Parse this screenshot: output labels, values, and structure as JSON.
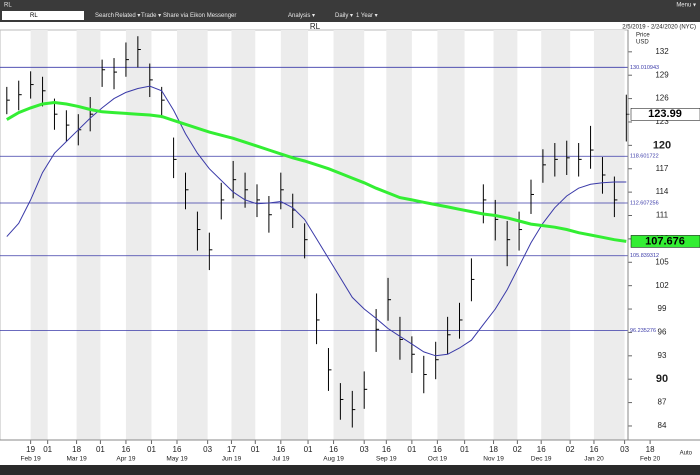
{
  "toolbar": {
    "window_title": "RL",
    "menu": "Menu ▾",
    "symbol": "RL",
    "items": [
      "Search",
      "Related ▾",
      "Trade ▾",
      "Share via Eikon Messenger",
      "Analysis ▾",
      "Daily ▾",
      "1 Year ▾"
    ]
  },
  "chart_data": {
    "type": "ohlc",
    "title": "RL",
    "subtitle": "2/5/2019 - 2/24/2020 (NYC)",
    "y_label": "Price",
    "y_unit": "USD",
    "scale_mode": "Auto",
    "x": [
      "2019-02-05",
      "2019-02-12",
      "2019-02-19",
      "2019-02-26",
      "2019-03-05",
      "2019-03-12",
      "2019-03-19",
      "2019-03-26",
      "2019-04-02",
      "2019-04-09",
      "2019-04-16",
      "2019-04-23",
      "2019-04-30",
      "2019-05-07",
      "2019-05-14",
      "2019-05-21",
      "2019-05-28",
      "2019-06-04",
      "2019-06-11",
      "2019-06-18",
      "2019-06-25",
      "2019-07-02",
      "2019-07-09",
      "2019-07-16",
      "2019-07-23",
      "2019-07-30",
      "2019-08-06",
      "2019-08-13",
      "2019-08-20",
      "2019-08-27",
      "2019-09-03",
      "2019-09-10",
      "2019-09-17",
      "2019-09-24",
      "2019-10-01",
      "2019-10-08",
      "2019-10-15",
      "2019-10-22",
      "2019-10-29",
      "2019-11-05",
      "2019-11-12",
      "2019-11-19",
      "2019-11-26",
      "2019-12-03",
      "2019-12-10",
      "2019-12-17",
      "2019-12-24",
      "2019-12-31",
      "2020-01-07",
      "2020-01-14",
      "2020-01-21",
      "2020-01-28",
      "2020-02-04"
    ],
    "color": "#000000",
    "high": [
      127.5,
      128.3,
      129.5,
      128.8,
      126,
      124.5,
      124,
      126.2,
      131,
      131.2,
      133.2,
      134,
      130.5,
      127.5,
      121,
      116.5,
      111.5,
      108.8,
      115.2,
      118,
      116.5,
      115,
      113.5,
      116.5,
      113.8,
      110,
      101,
      94,
      89.5,
      88.5,
      91,
      99,
      103,
      98,
      95.5,
      93,
      94.8,
      98,
      99.8,
      105.5,
      115,
      113,
      110.3,
      111.5,
      115.6,
      119.5,
      120.3,
      120.6,
      120.3,
      122.5,
      118.5,
      116,
      126.5
    ],
    "low": [
      124,
      124.5,
      126,
      125,
      122,
      120.5,
      120,
      121.8,
      127.5,
      127.2,
      128.8,
      130,
      126.2,
      123.5,
      115.8,
      111.8,
      106.5,
      104,
      110.5,
      113.2,
      112,
      110.8,
      108.8,
      111.8,
      109.4,
      105.5,
      94.5,
      88.5,
      84.8,
      83.8,
      86.2,
      93.5,
      97.5,
      92.5,
      90.8,
      88.2,
      90,
      93.2,
      95.2,
      100,
      110,
      107.8,
      104.5,
      106.5,
      111.2,
      115.2,
      116,
      116.2,
      116,
      117,
      113.8,
      110.8,
      120.5
    ],
    "close": [
      125.8,
      126.5,
      127.8,
      127,
      124,
      122.6,
      122,
      124,
      129.7,
      129.4,
      131,
      132.3,
      128.4,
      125.8,
      118.2,
      114.3,
      109.2,
      106.6,
      113,
      115.6,
      114.3,
      113,
      111.1,
      114.3,
      111.7,
      107.9,
      97.6,
      91.2,
      87.4,
      86.1,
      88.7,
      96.4,
      100.2,
      95.1,
      93.2,
      90.6,
      92.5,
      95.7,
      97.6,
      102.8,
      113,
      110.5,
      107.9,
      109.2,
      113.7,
      117.5,
      118.2,
      118.4,
      118.2,
      119.4,
      116.2,
      113,
      123.99
    ],
    "ma_lines": [
      {
        "color": "#3a3aa8",
        "width": 1,
        "values": [
          108.3,
          110,
          113,
          116.5,
          119,
          120.5,
          122,
          123.5,
          124.8,
          126,
          126.8,
          127.3,
          127.6,
          127,
          124.5,
          121.5,
          119,
          117,
          115.5,
          114,
          113,
          112.5,
          112.6,
          112.8,
          112,
          110.5,
          108,
          105.5,
          103,
          100.5,
          99,
          97.8,
          96.5,
          95.5,
          94.5,
          93.5,
          93,
          93.2,
          94,
          95,
          97,
          99,
          101.5,
          104.5,
          107.5,
          110,
          112,
          113.5,
          114.5,
          115,
          115.2,
          115.3,
          115.3
        ]
      },
      {
        "color": "#33ee33",
        "width": 3,
        "values": [
          123.3,
          124.2,
          124.8,
          125.3,
          125.5,
          125.3,
          125,
          124.6,
          124.3,
          124.2,
          124.1,
          124,
          123.9,
          123.7,
          123.2,
          122.7,
          122.2,
          121.7,
          121.3,
          120.9,
          120.4,
          119.9,
          119.4,
          118.9,
          118.4,
          118,
          117.5,
          117,
          116.4,
          115.8,
          115.2,
          114.5,
          113.9,
          113.3,
          113,
          112.7,
          112.4,
          112.1,
          111.8,
          111.5,
          111.2,
          111,
          110.7,
          110.3,
          109.9,
          109.7,
          109.5,
          109.2,
          108.8,
          108.5,
          108.2,
          107.9,
          107.676
        ]
      }
    ],
    "levels": [
      130.010943,
      118.601722,
      112.607256,
      105.839312,
      96.235276
    ],
    "level_color": "#3a3aa8",
    "xlim": [
      "2019-02-01",
      "2020-02-05"
    ],
    "ylim": [
      82.2,
      134.8
    ],
    "yticks": [
      84,
      87,
      90,
      93,
      96,
      99,
      102,
      105,
      108,
      111,
      114,
      117,
      120,
      123,
      126,
      129,
      132
    ],
    "xticks": [
      {
        "value": "2019-02-19",
        "label": "19"
      },
      {
        "value": "2019-03-01",
        "label": "01"
      },
      {
        "value": "2019-03-18",
        "label": "18"
      },
      {
        "value": "2019-04-01",
        "label": "01"
      },
      {
        "value": "2019-04-16",
        "label": "16"
      },
      {
        "value": "2019-05-01",
        "label": "01"
      },
      {
        "value": "2019-05-16",
        "label": "16"
      },
      {
        "value": "2019-06-03",
        "label": "03"
      },
      {
        "value": "2019-06-17",
        "label": "17"
      },
      {
        "value": "2019-07-01",
        "label": "01"
      },
      {
        "value": "2019-07-16",
        "label": "16"
      },
      {
        "value": "2019-08-01",
        "label": "01"
      },
      {
        "value": "2019-08-16",
        "label": "16"
      },
      {
        "value": "2019-09-03",
        "label": "03"
      },
      {
        "value": "2019-09-16",
        "label": "16"
      },
      {
        "value": "2019-10-01",
        "label": "01"
      },
      {
        "value": "2019-10-16",
        "label": "16"
      },
      {
        "value": "2019-11-01",
        "label": "01"
      },
      {
        "value": "2019-11-18",
        "label": "18"
      },
      {
        "value": "2019-12-02",
        "label": "02"
      },
      {
        "value": "2019-12-16",
        "label": "16"
      },
      {
        "value": "2020-01-02",
        "label": "02"
      },
      {
        "value": "2020-01-16",
        "label": "16"
      },
      {
        "value": "2020-02-03",
        "label": "03"
      },
      {
        "value": "2020-02-18",
        "label": "18"
      }
    ],
    "month_labels": [
      {
        "value": "2019-02-19",
        "label": "Feb 19"
      },
      {
        "value": "2019-03-18",
        "label": "Mar 19"
      },
      {
        "value": "2019-04-16",
        "label": "Apr 19"
      },
      {
        "value": "2019-05-16",
        "label": "May 19"
      },
      {
        "value": "2019-06-17",
        "label": "Jun 19"
      },
      {
        "value": "2019-07-16",
        "label": "Jul 19"
      },
      {
        "value": "2019-08-16",
        "label": "Aug 19"
      },
      {
        "value": "2019-09-16",
        "label": "Sep 19"
      },
      {
        "value": "2019-10-16",
        "label": "Oct 19"
      },
      {
        "value": "2019-11-18",
        "label": "Nov 19"
      },
      {
        "value": "2019-12-16",
        "label": "Dec 19"
      },
      {
        "value": "2020-01-16",
        "label": "Jan 20"
      },
      {
        "value": "2020-02-18",
        "label": "Feb 20"
      }
    ],
    "grid": true
  }
}
